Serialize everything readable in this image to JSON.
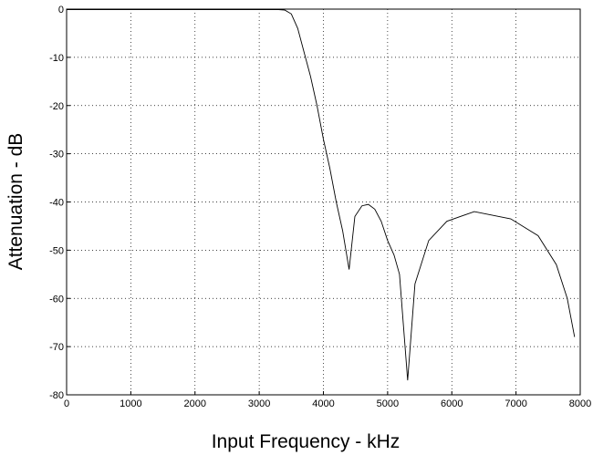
{
  "chart_data": {
    "type": "line",
    "xlabel": "Input Frequency - kHz",
    "ylabel": "Attenuation - dB",
    "xlim": [
      0,
      8000
    ],
    "xticks": [
      0,
      1000,
      2000,
      3000,
      4000,
      5000,
      6000,
      7000,
      8000
    ],
    "ylim": [
      -80,
      0
    ],
    "yticks": [
      0,
      -10,
      -20,
      -30,
      -40,
      -50,
      -60,
      -70,
      -80
    ],
    "grid": true,
    "series": [
      {
        "color": "#000000",
        "x": [
          0,
          1000,
          2000,
          3000,
          3300,
          3400,
          3500,
          3600,
          3700,
          3800,
          3900,
          4000,
          4100,
          4200,
          4300,
          4400,
          4490,
          4600,
          4700,
          4800,
          4900,
          5000,
          5100,
          5185,
          5312,
          5426,
          5640,
          5923,
          6350,
          6918,
          7344,
          7628,
          7798,
          7912
        ],
        "values": [
          -0.1,
          -0.1,
          -0.1,
          -0.1,
          -0.1,
          -0.2,
          -1,
          -4,
          -9,
          -14,
          -20,
          -27,
          -33,
          -40,
          -46,
          -54,
          -43,
          -40.8,
          -40.5,
          -41.5,
          -44,
          -48,
          -51,
          -55,
          -77,
          -57,
          -48,
          -44,
          -42,
          -43.5,
          -47,
          -53,
          -60,
          -68
        ]
      }
    ]
  }
}
